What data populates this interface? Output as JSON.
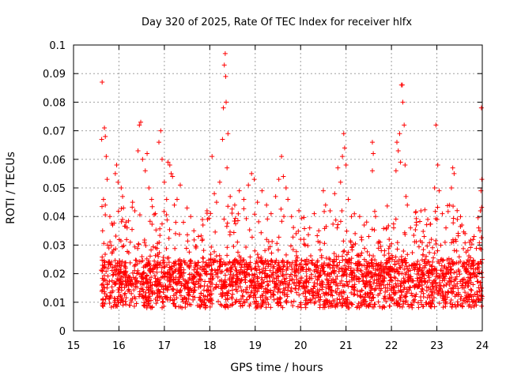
{
  "chart_data": {
    "type": "scatter",
    "title": "Day 320 of 2025, Rate Of TEC Index for receiver hlfx",
    "xlabel": "GPS time / hours",
    "ylabel": "ROTI / TECUs",
    "xlim": [
      15,
      24
    ],
    "ylim": [
      0,
      0.1
    ],
    "x_ticks": [
      "15",
      "16",
      "17",
      "18",
      "19",
      "20",
      "21",
      "22",
      "23",
      "24"
    ],
    "y_ticks": [
      "0",
      "0.01",
      "0.02",
      "0.03",
      "0.04",
      "0.05",
      "0.06",
      "0.07",
      "0.08",
      "0.09",
      "0.1"
    ],
    "grid": true,
    "marker": "+",
    "marker_color": "#ff0000",
    "series": [
      {
        "points": [
          [
            15.63,
            0.087
          ],
          [
            15.62,
            0.067
          ],
          [
            15.68,
            0.071
          ],
          [
            15.7,
            0.068
          ],
          [
            15.72,
            0.061
          ],
          [
            15.74,
            0.053
          ],
          [
            15.66,
            0.046
          ],
          [
            15.7,
            0.044
          ],
          [
            15.64,
            0.035
          ],
          [
            15.75,
            0.03
          ],
          [
            15.8,
            0.04
          ],
          [
            15.86,
            0.037
          ],
          [
            15.92,
            0.055
          ],
          [
            15.95,
            0.058
          ],
          [
            15.98,
            0.052
          ],
          [
            16.05,
            0.05
          ],
          [
            16.08,
            0.047
          ],
          [
            16.1,
            0.043
          ],
          [
            16.18,
            0.036
          ],
          [
            16.25,
            0.031
          ],
          [
            16.3,
            0.045
          ],
          [
            16.35,
            0.042
          ],
          [
            16.42,
            0.063
          ],
          [
            16.45,
            0.072
          ],
          [
            16.48,
            0.073
          ],
          [
            16.52,
            0.06
          ],
          [
            16.58,
            0.056
          ],
          [
            16.62,
            0.062
          ],
          [
            16.66,
            0.05
          ],
          [
            16.72,
            0.046
          ],
          [
            16.8,
            0.041
          ],
          [
            16.88,
            0.066
          ],
          [
            16.92,
            0.07
          ],
          [
            16.95,
            0.06
          ],
          [
            17.0,
            0.052
          ],
          [
            17.05,
            0.046
          ],
          [
            17.08,
            0.059
          ],
          [
            17.12,
            0.058
          ],
          [
            17.15,
            0.055
          ],
          [
            17.18,
            0.054
          ],
          [
            17.22,
            0.044
          ],
          [
            17.28,
            0.046
          ],
          [
            17.35,
            0.051
          ],
          [
            17.42,
            0.038
          ],
          [
            17.5,
            0.043
          ],
          [
            17.58,
            0.04
          ],
          [
            17.65,
            0.035
          ],
          [
            17.75,
            0.033
          ],
          [
            17.85,
            0.037
          ],
          [
            17.95,
            0.039
          ],
          [
            18.05,
            0.061
          ],
          [
            18.1,
            0.048
          ],
          [
            18.15,
            0.045
          ],
          [
            18.22,
            0.052
          ],
          [
            18.28,
            0.067
          ],
          [
            18.3,
            0.078
          ],
          [
            18.32,
            0.093
          ],
          [
            18.34,
            0.097
          ],
          [
            18.35,
            0.089
          ],
          [
            18.36,
            0.08
          ],
          [
            18.38,
            0.057
          ],
          [
            18.4,
            0.069
          ],
          [
            18.45,
            0.047
          ],
          [
            18.55,
            0.044
          ],
          [
            18.65,
            0.049
          ],
          [
            18.75,
            0.046
          ],
          [
            18.85,
            0.051
          ],
          [
            18.92,
            0.055
          ],
          [
            18.98,
            0.053
          ],
          [
            19.05,
            0.045
          ],
          [
            19.15,
            0.049
          ],
          [
            19.25,
            0.044
          ],
          [
            19.35,
            0.041
          ],
          [
            19.45,
            0.047
          ],
          [
            19.52,
            0.053
          ],
          [
            19.58,
            0.061
          ],
          [
            19.62,
            0.054
          ],
          [
            19.68,
            0.05
          ],
          [
            19.72,
            0.046
          ],
          [
            19.8,
            0.04
          ],
          [
            19.9,
            0.034
          ],
          [
            20.0,
            0.032
          ],
          [
            20.1,
            0.03
          ],
          [
            20.2,
            0.036
          ],
          [
            20.3,
            0.041
          ],
          [
            20.4,
            0.035
          ],
          [
            20.5,
            0.049
          ],
          [
            20.55,
            0.044
          ],
          [
            20.65,
            0.042
          ],
          [
            20.75,
            0.048
          ],
          [
            20.82,
            0.057
          ],
          [
            20.88,
            0.052
          ],
          [
            20.92,
            0.061
          ],
          [
            20.95,
            0.069
          ],
          [
            20.97,
            0.064
          ],
          [
            21.0,
            0.058
          ],
          [
            21.05,
            0.046
          ],
          [
            21.12,
            0.04
          ],
          [
            21.2,
            0.034
          ],
          [
            21.3,
            0.04
          ],
          [
            21.4,
            0.037
          ],
          [
            21.5,
            0.033
          ],
          [
            21.58,
            0.066
          ],
          [
            21.6,
            0.062
          ],
          [
            21.58,
            0.056
          ],
          [
            21.65,
            0.04
          ],
          [
            21.75,
            0.031
          ],
          [
            21.85,
            0.028
          ],
          [
            21.95,
            0.032
          ],
          [
            22.05,
            0.036
          ],
          [
            22.1,
            0.056
          ],
          [
            22.12,
            0.066
          ],
          [
            22.15,
            0.063
          ],
          [
            22.18,
            0.069
          ],
          [
            22.2,
            0.059
          ],
          [
            22.22,
            0.086
          ],
          [
            22.24,
            0.086
          ],
          [
            22.25,
            0.08
          ],
          [
            22.28,
            0.072
          ],
          [
            22.3,
            0.058
          ],
          [
            22.32,
            0.047
          ],
          [
            22.35,
            0.044
          ],
          [
            22.42,
            0.036
          ],
          [
            22.55,
            0.038
          ],
          [
            22.65,
            0.042
          ],
          [
            22.72,
            0.033
          ],
          [
            22.8,
            0.039
          ],
          [
            22.88,
            0.032
          ],
          [
            22.95,
            0.05
          ],
          [
            22.98,
            0.072
          ],
          [
            23.02,
            0.058
          ],
          [
            23.05,
            0.049
          ],
          [
            23.12,
            0.041
          ],
          [
            23.2,
            0.036
          ],
          [
            23.28,
            0.044
          ],
          [
            23.32,
            0.05
          ],
          [
            23.35,
            0.057
          ],
          [
            23.38,
            0.055
          ],
          [
            23.45,
            0.039
          ],
          [
            23.55,
            0.037
          ],
          [
            23.62,
            0.034
          ],
          [
            23.72,
            0.031
          ],
          [
            23.82,
            0.033
          ],
          [
            23.92,
            0.036
          ],
          [
            23.98,
            0.078
          ],
          [
            23.99,
            0.053
          ],
          [
            23.97,
            0.049
          ],
          [
            23.96,
            0.042
          ],
          [
            23.95,
            0.035
          ]
        ]
      }
    ],
    "dense_band": {
      "x_range": [
        15.6,
        24.0
      ],
      "y_floor": 0.004,
      "y_median": 0.015,
      "y_upper_typical": 0.032,
      "approx_points": 2600
    }
  }
}
